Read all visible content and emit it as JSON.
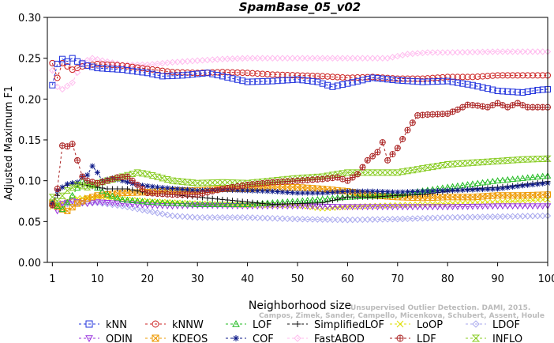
{
  "chart_data": {
    "type": "line",
    "title": "SpamBase_05_v02",
    "xlabel": "Neighborhood size",
    "ylabel": "Adjusted Maximum F1",
    "xlim": [
      0,
      100
    ],
    "ylim": [
      0,
      0.3
    ],
    "x_ticks": [
      1,
      10,
      20,
      30,
      40,
      50,
      60,
      70,
      80,
      90,
      100
    ],
    "y_ticks": [
      0.0,
      0.05,
      0.1,
      0.15,
      0.2,
      0.25,
      0.3
    ],
    "y_tick_labels": [
      "0.00",
      "0.05",
      "0.10",
      "0.15",
      "0.20",
      "0.25",
      "0.30"
    ],
    "grid": false,
    "legend_position": "bottom",
    "watermark": "Campos, Zimek, Sander, Campello, Micenkova, Schubert, Assent, Houle",
    "watermark_line1": "Unsupervised Outlier Detection. DAMI, 2015.",
    "series": [
      {
        "name": "kNN",
        "color": "#2233dd",
        "marker": "square",
        "dash": "3,3",
        "keyframes": [
          [
            1,
            0.217
          ],
          [
            2,
            0.243
          ],
          [
            3,
            0.249
          ],
          [
            4,
            0.246
          ],
          [
            5,
            0.25
          ],
          [
            6,
            0.246
          ],
          [
            8,
            0.241
          ],
          [
            10,
            0.238
          ],
          [
            15,
            0.236
          ],
          [
            20,
            0.232
          ],
          [
            23,
            0.228
          ],
          [
            27,
            0.229
          ],
          [
            32,
            0.232
          ],
          [
            35,
            0.228
          ],
          [
            40,
            0.221
          ],
          [
            45,
            0.222
          ],
          [
            50,
            0.224
          ],
          [
            54,
            0.221
          ],
          [
            57,
            0.215
          ],
          [
            60,
            0.219
          ],
          [
            65,
            0.226
          ],
          [
            70,
            0.223
          ],
          [
            75,
            0.221
          ],
          [
            80,
            0.222
          ],
          [
            85,
            0.217
          ],
          [
            90,
            0.21
          ],
          [
            95,
            0.208
          ],
          [
            98,
            0.211
          ],
          [
            100,
            0.212
          ]
        ]
      },
      {
        "name": "kNNW",
        "color": "#cc2222",
        "marker": "circle",
        "dash": "3,3",
        "keyframes": [
          [
            1,
            0.244
          ],
          [
            2,
            0.226
          ],
          [
            3,
            0.244
          ],
          [
            5,
            0.236
          ],
          [
            7,
            0.24
          ],
          [
            10,
            0.243
          ],
          [
            15,
            0.241
          ],
          [
            20,
            0.237
          ],
          [
            25,
            0.233
          ],
          [
            30,
            0.232
          ],
          [
            35,
            0.233
          ],
          [
            40,
            0.232
          ],
          [
            45,
            0.23
          ],
          [
            50,
            0.229
          ],
          [
            55,
            0.228
          ],
          [
            60,
            0.226
          ],
          [
            65,
            0.227
          ],
          [
            70,
            0.225
          ],
          [
            75,
            0.225
          ],
          [
            80,
            0.227
          ],
          [
            85,
            0.227
          ],
          [
            90,
            0.229
          ],
          [
            95,
            0.229
          ],
          [
            100,
            0.229
          ]
        ]
      },
      {
        "name": "LOF",
        "color": "#22bb22",
        "marker": "triangle-up",
        "dash": "3,3",
        "keyframes": [
          [
            1,
            0.073
          ],
          [
            3,
            0.065
          ],
          [
            5,
            0.082
          ],
          [
            7,
            0.1
          ],
          [
            9,
            0.095
          ],
          [
            12,
            0.083
          ],
          [
            15,
            0.077
          ],
          [
            20,
            0.074
          ],
          [
            30,
            0.071
          ],
          [
            40,
            0.071
          ],
          [
            50,
            0.075
          ],
          [
            60,
            0.08
          ],
          [
            70,
            0.083
          ],
          [
            80,
            0.092
          ],
          [
            90,
            0.1
          ],
          [
            100,
            0.106
          ]
        ]
      },
      {
        "name": "SimplifiedLOF",
        "color": "#111111",
        "marker": "plus",
        "dash": "3,3",
        "keyframes": [
          [
            1,
            0.072
          ],
          [
            3,
            0.092
          ],
          [
            5,
            0.097
          ],
          [
            8,
            0.094
          ],
          [
            12,
            0.09
          ],
          [
            16,
            0.09
          ],
          [
            20,
            0.085
          ],
          [
            25,
            0.083
          ],
          [
            30,
            0.08
          ],
          [
            35,
            0.077
          ],
          [
            40,
            0.074
          ],
          [
            45,
            0.071
          ],
          [
            50,
            0.072
          ],
          [
            55,
            0.073
          ],
          [
            60,
            0.08
          ],
          [
            65,
            0.08
          ],
          [
            70,
            0.082
          ],
          [
            75,
            0.083
          ],
          [
            80,
            0.087
          ],
          [
            85,
            0.09
          ],
          [
            90,
            0.092
          ],
          [
            95,
            0.095
          ],
          [
            100,
            0.099
          ]
        ]
      },
      {
        "name": "LoOP",
        "color": "#dddd00",
        "marker": "x",
        "dash": "3,3",
        "keyframes": [
          [
            1,
            0.068
          ],
          [
            5,
            0.078
          ],
          [
            10,
            0.08
          ],
          [
            20,
            0.075
          ],
          [
            30,
            0.072
          ],
          [
            40,
            0.07
          ],
          [
            50,
            0.07
          ],
          [
            55,
            0.066
          ],
          [
            60,
            0.068
          ],
          [
            70,
            0.07
          ],
          [
            80,
            0.072
          ],
          [
            90,
            0.074
          ],
          [
            100,
            0.077
          ]
        ]
      },
      {
        "name": "LDOF",
        "color": "#aaaaee",
        "marker": "diamond",
        "dash": "3,3",
        "keyframes": [
          [
            1,
            0.07
          ],
          [
            5,
            0.072
          ],
          [
            10,
            0.073
          ],
          [
            15,
            0.069
          ],
          [
            20,
            0.063
          ],
          [
            25,
            0.057
          ],
          [
            30,
            0.055
          ],
          [
            35,
            0.055
          ],
          [
            40,
            0.055
          ],
          [
            50,
            0.053
          ],
          [
            60,
            0.052
          ],
          [
            70,
            0.053
          ],
          [
            80,
            0.055
          ],
          [
            90,
            0.056
          ],
          [
            100,
            0.057
          ]
        ]
      },
      {
        "name": "ODIN",
        "color": "#9933dd",
        "marker": "triangle-down",
        "dash": "3,3",
        "keyframes": [
          [
            1,
            0.07
          ],
          [
            2,
            0.063
          ],
          [
            3,
            0.072
          ],
          [
            5,
            0.075
          ],
          [
            8,
            0.072
          ],
          [
            10,
            0.074
          ],
          [
            15,
            0.072
          ],
          [
            20,
            0.07
          ],
          [
            25,
            0.069
          ],
          [
            30,
            0.07
          ],
          [
            40,
            0.069
          ],
          [
            50,
            0.069
          ],
          [
            60,
            0.068
          ],
          [
            70,
            0.068
          ],
          [
            80,
            0.068
          ],
          [
            90,
            0.069
          ],
          [
            100,
            0.069
          ]
        ]
      },
      {
        "name": "KDEOS",
        "color": "#ee9900",
        "marker": "square-cross",
        "dash": "3,3",
        "keyframes": [
          [
            1,
            0.072
          ],
          [
            3,
            0.065
          ],
          [
            4,
            0.063
          ],
          [
            6,
            0.072
          ],
          [
            8,
            0.078
          ],
          [
            10,
            0.082
          ],
          [
            15,
            0.085
          ],
          [
            20,
            0.086
          ],
          [
            25,
            0.088
          ],
          [
            30,
            0.088
          ],
          [
            35,
            0.09
          ],
          [
            40,
            0.09
          ],
          [
            45,
            0.092
          ],
          [
            50,
            0.092
          ],
          [
            55,
            0.09
          ],
          [
            60,
            0.087
          ],
          [
            65,
            0.082
          ],
          [
            70,
            0.08
          ],
          [
            75,
            0.079
          ],
          [
            80,
            0.08
          ],
          [
            85,
            0.08
          ],
          [
            90,
            0.082
          ],
          [
            95,
            0.082
          ],
          [
            100,
            0.083
          ]
        ]
      },
      {
        "name": "COF",
        "color": "#0d1a88",
        "marker": "asterisk",
        "dash": "3,3",
        "keyframes": [
          [
            1,
            0.072
          ],
          [
            2,
            0.088
          ],
          [
            4,
            0.096
          ],
          [
            6,
            0.098
          ],
          [
            7,
            0.105
          ],
          [
            8,
            0.107
          ],
          [
            9,
            0.118
          ],
          [
            10,
            0.11
          ],
          [
            11,
            0.1
          ],
          [
            13,
            0.103
          ],
          [
            15,
            0.1
          ],
          [
            18,
            0.095
          ],
          [
            22,
            0.092
          ],
          [
            26,
            0.09
          ],
          [
            30,
            0.088
          ],
          [
            35,
            0.089
          ],
          [
            40,
            0.088
          ],
          [
            45,
            0.087
          ],
          [
            50,
            0.085
          ],
          [
            55,
            0.085
          ],
          [
            60,
            0.087
          ],
          [
            65,
            0.087
          ],
          [
            70,
            0.086
          ],
          [
            80,
            0.088
          ],
          [
            90,
            0.09
          ],
          [
            95,
            0.094
          ],
          [
            100,
            0.097
          ]
        ]
      },
      {
        "name": "FastABOD",
        "color": "#ffbbee",
        "marker": "diamond",
        "dash": "3,3",
        "keyframes": [
          [
            1,
            0.235
          ],
          [
            2,
            0.215
          ],
          [
            3,
            0.212
          ],
          [
            5,
            0.22
          ],
          [
            7,
            0.245
          ],
          [
            9,
            0.25
          ],
          [
            11,
            0.247
          ],
          [
            15,
            0.242
          ],
          [
            20,
            0.242
          ],
          [
            25,
            0.245
          ],
          [
            30,
            0.247
          ],
          [
            35,
            0.249
          ],
          [
            40,
            0.25
          ],
          [
            50,
            0.25
          ],
          [
            60,
            0.25
          ],
          [
            68,
            0.25
          ],
          [
            72,
            0.255
          ],
          [
            76,
            0.257
          ],
          [
            80,
            0.257
          ],
          [
            90,
            0.258
          ],
          [
            100,
            0.258
          ]
        ]
      },
      {
        "name": "LDF",
        "color": "#aa2222",
        "marker": "circle-plus",
        "dash": "3,3",
        "keyframes": [
          [
            1,
            0.07
          ],
          [
            2,
            0.09
          ],
          [
            3,
            0.143
          ],
          [
            4,
            0.142
          ],
          [
            5,
            0.145
          ],
          [
            6,
            0.125
          ],
          [
            7,
            0.105
          ],
          [
            8,
            0.1
          ],
          [
            10,
            0.097
          ],
          [
            12,
            0.1
          ],
          [
            14,
            0.104
          ],
          [
            16,
            0.105
          ],
          [
            18,
            0.095
          ],
          [
            20,
            0.085
          ],
          [
            25,
            0.083
          ],
          [
            30,
            0.083
          ],
          [
            35,
            0.09
          ],
          [
            40,
            0.095
          ],
          [
            45,
            0.098
          ],
          [
            50,
            0.1
          ],
          [
            55,
            0.102
          ],
          [
            58,
            0.104
          ],
          [
            60,
            0.1
          ],
          [
            62,
            0.108
          ],
          [
            64,
            0.125
          ],
          [
            66,
            0.135
          ],
          [
            67,
            0.147
          ],
          [
            68,
            0.125
          ],
          [
            70,
            0.14
          ],
          [
            72,
            0.162
          ],
          [
            74,
            0.18
          ],
          [
            76,
            0.181
          ],
          [
            80,
            0.182
          ],
          [
            82,
            0.187
          ],
          [
            84,
            0.193
          ],
          [
            86,
            0.192
          ],
          [
            88,
            0.19
          ],
          [
            90,
            0.195
          ],
          [
            92,
            0.19
          ],
          [
            94,
            0.195
          ],
          [
            96,
            0.19
          ],
          [
            98,
            0.19
          ],
          [
            100,
            0.19
          ]
        ]
      },
      {
        "name": "INFLO",
        "color": "#88cc22",
        "marker": "hourglass",
        "dash": "3,3",
        "keyframes": [
          [
            1,
            0.08
          ],
          [
            2,
            0.075
          ],
          [
            4,
            0.088
          ],
          [
            6,
            0.095
          ],
          [
            8,
            0.092
          ],
          [
            10,
            0.097
          ],
          [
            12,
            0.1
          ],
          [
            15,
            0.105
          ],
          [
            18,
            0.11
          ],
          [
            20,
            0.108
          ],
          [
            25,
            0.1
          ],
          [
            30,
            0.097
          ],
          [
            35,
            0.098
          ],
          [
            40,
            0.097
          ],
          [
            45,
            0.1
          ],
          [
            50,
            0.103
          ],
          [
            55,
            0.105
          ],
          [
            60,
            0.11
          ],
          [
            65,
            0.11
          ],
          [
            70,
            0.11
          ],
          [
            75,
            0.115
          ],
          [
            80,
            0.12
          ],
          [
            85,
            0.122
          ],
          [
            90,
            0.124
          ],
          [
            95,
            0.126
          ],
          [
            100,
            0.127
          ]
        ]
      }
    ]
  }
}
